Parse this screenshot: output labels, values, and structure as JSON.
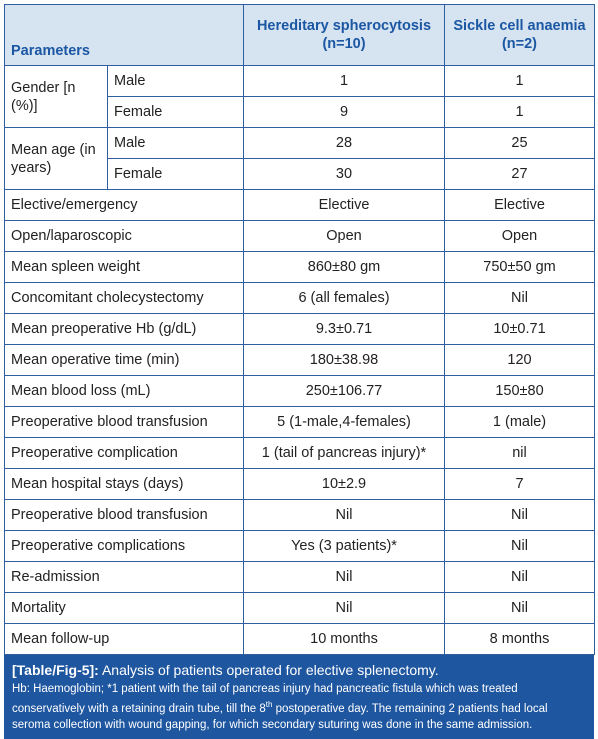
{
  "headers": {
    "parameters": "Parameters",
    "hs": "Hereditary spherocytosis (n=10)",
    "sca": "Sickle cell anaemia (n=2)"
  },
  "gender": {
    "label": "Gender [n (%)]",
    "male": {
      "label": "Male",
      "hs": "1",
      "sca": "1"
    },
    "female": {
      "label": "Female",
      "hs": "9",
      "sca": "1"
    }
  },
  "mean_age": {
    "label": "Mean age (in years)",
    "male": {
      "label": "Male",
      "hs": "28",
      "sca": "25"
    },
    "female": {
      "label": "Female",
      "hs": "30",
      "sca": "27"
    }
  },
  "rows": [
    {
      "param": "Elective/emergency",
      "hs": "Elective",
      "sca": "Elective"
    },
    {
      "param": "Open/laparoscopic",
      "hs": "Open",
      "sca": "Open"
    },
    {
      "param": "Mean spleen weight",
      "hs": "860±80 gm",
      "sca": "750±50 gm"
    },
    {
      "param": "Concomitant cholecystectomy",
      "hs": "6 (all females)",
      "sca": "Nil"
    },
    {
      "param": "Mean preoperative Hb (g/dL)",
      "hs": "9.3±0.71",
      "sca": "10±0.71"
    },
    {
      "param": "Mean operative time (min)",
      "hs": "180±38.98",
      "sca": "120"
    },
    {
      "param": "Mean blood loss (mL)",
      "hs": "250±106.77",
      "sca": "150±80"
    },
    {
      "param": "Preoperative blood transfusion",
      "hs": "5 (1-male,4-females)",
      "sca": "1 (male)"
    },
    {
      "param": "Preoperative complication",
      "hs": "1 (tail of pancreas injury)*",
      "sca": "nil"
    },
    {
      "param": "Mean hospital stays (days)",
      "hs": "10±2.9",
      "sca": "7"
    },
    {
      "param": "Preoperative blood transfusion",
      "hs": "Nil",
      "sca": "Nil"
    },
    {
      "param": "Preoperative complications",
      "hs": "Yes (3 patients)*",
      "sca": "Nil"
    },
    {
      "param": "Re-admission",
      "hs": "Nil",
      "sca": "Nil"
    },
    {
      "param": "Mortality",
      "hs": "Nil",
      "sca": "Nil"
    },
    {
      "param": "Mean follow-up",
      "hs": "10 months",
      "sca": "8 months"
    }
  ],
  "caption": {
    "label": "[Table/Fig-5]:",
    "title": " Analysis of patients operated for elective splenectomy.",
    "note_before_sup": "Hb: Haemoglobin; *1 patient with the tail of pancreas injury had pancreatic fistula which was treated conservatively with a retaining drain tube, till the 8",
    "note_sup": "th",
    "note_after_sup": " postoperative day. The remaining 2 patients had local seroma collection with wound gapping, for which secondary suturing was done in the same admission."
  }
}
